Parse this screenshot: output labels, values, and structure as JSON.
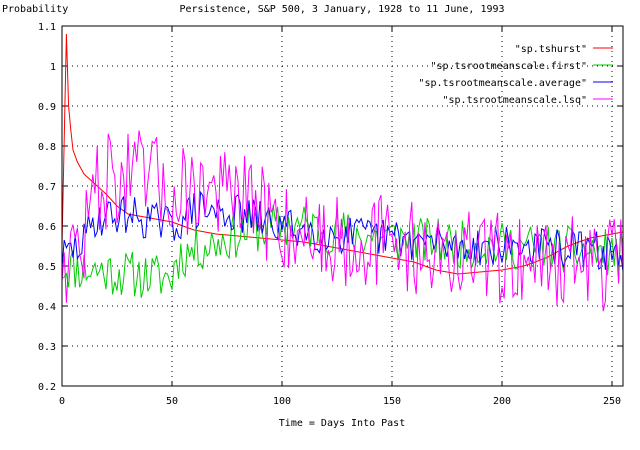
{
  "chart_data": {
    "type": "line",
    "title": "Persistence, S&P 500, 3 January, 1928 to 11 June, 1993",
    "xlabel": "Time = Days Into Past",
    "ylabel": "Probability",
    "xlim": [
      0,
      255
    ],
    "ylim": [
      0.2,
      1.1
    ],
    "x_ticks": [
      0,
      50,
      100,
      150,
      200,
      250
    ],
    "y_ticks": [
      0.2,
      0.3,
      0.4,
      0.5,
      0.6,
      0.7,
      0.8,
      0.9,
      1.0,
      1.1
    ],
    "x_tick_labels": [
      "0",
      "50",
      "100",
      "150",
      "200",
      "250"
    ],
    "y_tick_labels": [
      "0.2",
      "0.3",
      "0.4",
      "0.5",
      "0.6",
      "0.7",
      "0.8",
      "0.9",
      "1",
      "1.1"
    ],
    "grid": true,
    "legend_position": "top-right",
    "x_step": 1,
    "series": [
      {
        "name": "\"sp.tshurst\"",
        "color": "#ff0000",
        "points": [
          [
            0,
            0.55
          ],
          [
            2,
            1.08
          ],
          [
            3,
            0.9
          ],
          [
            4,
            0.84
          ],
          [
            5,
            0.79
          ],
          [
            7,
            0.76
          ],
          [
            10,
            0.73
          ],
          [
            14,
            0.71
          ],
          [
            16,
            0.7
          ],
          [
            20,
            0.68
          ],
          [
            25,
            0.65
          ],
          [
            30,
            0.63
          ],
          [
            40,
            0.62
          ],
          [
            50,
            0.61
          ],
          [
            55,
            0.6
          ],
          [
            60,
            0.59
          ],
          [
            70,
            0.58
          ],
          [
            80,
            0.575
          ],
          [
            90,
            0.57
          ],
          [
            100,
            0.565
          ],
          [
            110,
            0.56
          ],
          [
            120,
            0.55
          ],
          [
            130,
            0.54
          ],
          [
            140,
            0.53
          ],
          [
            150,
            0.52
          ],
          [
            160,
            0.51
          ],
          [
            170,
            0.49
          ],
          [
            180,
            0.48
          ],
          [
            190,
            0.485
          ],
          [
            200,
            0.49
          ],
          [
            210,
            0.5
          ],
          [
            220,
            0.52
          ],
          [
            230,
            0.55
          ],
          [
            240,
            0.57
          ],
          [
            250,
            0.58
          ],
          [
            255,
            0.585
          ]
        ]
      },
      {
        "name": "\"sp.tsrootmeanscale.first\"",
        "color": "#00cc00",
        "mean_profile": [
          [
            0,
            0.5
          ],
          [
            30,
            0.48
          ],
          [
            50,
            0.47
          ],
          [
            52,
            0.52
          ],
          [
            60,
            0.54
          ],
          [
            70,
            0.56
          ],
          [
            85,
            0.59
          ],
          [
            100,
            0.6
          ],
          [
            110,
            0.6
          ],
          [
            130,
            0.58
          ],
          [
            150,
            0.57
          ],
          [
            170,
            0.56
          ],
          [
            190,
            0.55
          ],
          [
            210,
            0.55
          ],
          [
            230,
            0.54
          ],
          [
            255,
            0.53
          ]
        ],
        "noise_amplitude": 0.06,
        "seed": 11
      },
      {
        "name": "\"sp.tsrootmeanscale.average\"",
        "color": "#0000ff",
        "mean_profile": [
          [
            0,
            0.52
          ],
          [
            10,
            0.56
          ],
          [
            15,
            0.62
          ],
          [
            30,
            0.63
          ],
          [
            50,
            0.6
          ],
          [
            60,
            0.64
          ],
          [
            80,
            0.63
          ],
          [
            100,
            0.6
          ],
          [
            120,
            0.58
          ],
          [
            150,
            0.57
          ],
          [
            180,
            0.55
          ],
          [
            210,
            0.55
          ],
          [
            240,
            0.54
          ],
          [
            255,
            0.53
          ]
        ],
        "noise_amplitude": 0.05,
        "seed": 29
      },
      {
        "name": "\"sp.tsrootmeanscale.lsq\"",
        "color": "#ff00ff",
        "mean_profile": [
          [
            0,
            0.52
          ],
          [
            10,
            0.56
          ],
          [
            15,
            0.7
          ],
          [
            25,
            0.72
          ],
          [
            40,
            0.72
          ],
          [
            50,
            0.68
          ],
          [
            60,
            0.7
          ],
          [
            75,
            0.68
          ],
          [
            90,
            0.64
          ],
          [
            100,
            0.6
          ],
          [
            120,
            0.57
          ],
          [
            150,
            0.56
          ],
          [
            180,
            0.52
          ],
          [
            210,
            0.52
          ],
          [
            240,
            0.51
          ],
          [
            255,
            0.5
          ]
        ],
        "noise_amplitude": 0.12,
        "seed": 47
      }
    ]
  }
}
